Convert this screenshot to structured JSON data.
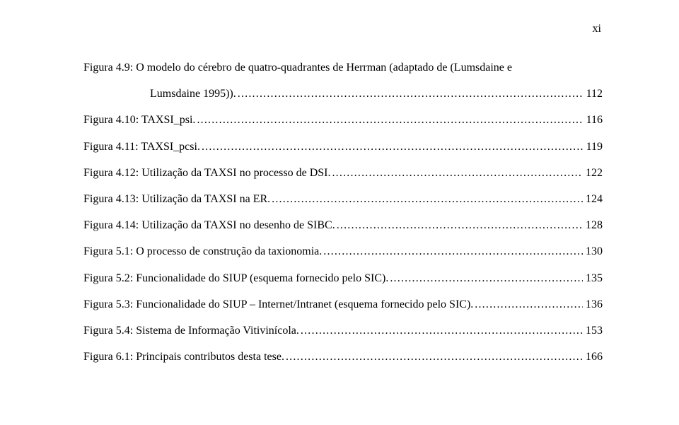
{
  "page_number": "xi",
  "entries": [
    {
      "lines": [
        "Figura 4.9: O modelo do cérebro de quatro-quadrantes de Herrman (adaptado de (Lumsdaine e",
        "Lumsdaine 1995))."
      ],
      "page": "112",
      "indent_last": true
    },
    {
      "lines": [
        "Figura 4.10: TAXSI_psi."
      ],
      "page": "116"
    },
    {
      "lines": [
        "Figura 4.11: TAXSI_pcsi."
      ],
      "page": "119"
    },
    {
      "lines": [
        "Figura 4.12: Utilização da TAXSI no processo de DSI. "
      ],
      "page": "122"
    },
    {
      "lines": [
        "Figura 4.13: Utilização da TAXSI na ER."
      ],
      "page": "124"
    },
    {
      "lines": [
        "Figura 4.14: Utilização da TAXSI no desenho de SIBC."
      ],
      "page": "128"
    },
    {
      "lines": [
        "Figura 5.1: O processo de construção da taxionomia."
      ],
      "page": "130"
    },
    {
      "lines": [
        "Figura 5.2: Funcionalidade do SIUP (esquema fornecido pelo SIC). "
      ],
      "page": "135"
    },
    {
      "lines": [
        "Figura 5.3: Funcionalidade do SIUP – Internet/Intranet (esquema fornecido pelo SIC)."
      ],
      "page": "136"
    },
    {
      "lines": [
        "Figura 5.4: Sistema de Informação Vitivinícola."
      ],
      "page": "153"
    },
    {
      "lines": [
        "Figura 6.1: Principais contributos desta tese."
      ],
      "page": "166"
    }
  ]
}
